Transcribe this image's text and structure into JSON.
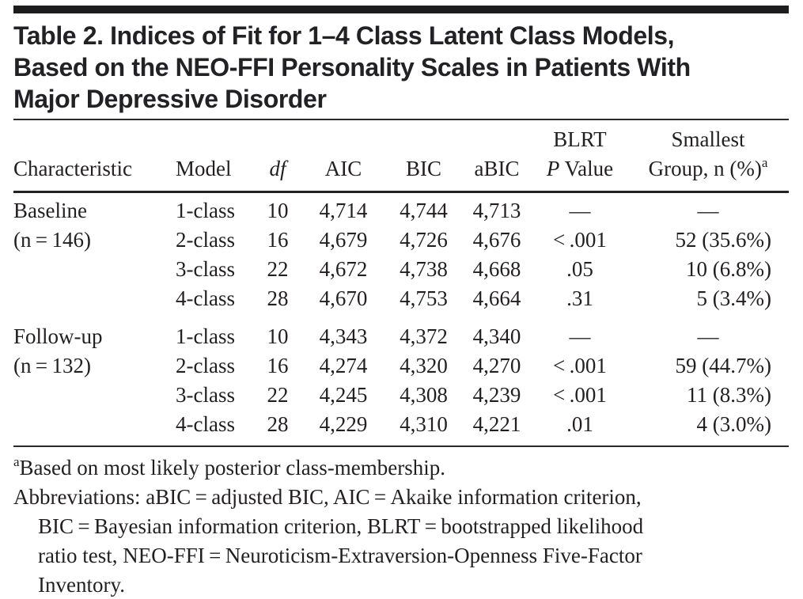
{
  "title": {
    "lines": [
      "Table 2. Indices of Fit for 1–4 Class Latent Class Models,",
      "Based on the NEO-FFI Personality Scales in Patients With",
      "Major Depressive Disorder"
    ]
  },
  "header": {
    "characteristic": "Characteristic",
    "model": "Model",
    "df": "df",
    "aic": "AIC",
    "bic": "BIC",
    "abic": "aBIC",
    "blrt_top": "BLRT",
    "p_italic": "P",
    "value_rest": " Value",
    "smallest_top": "Smallest",
    "group_label": "Group, n (%)",
    "footnote_marker": "a"
  },
  "rows": [
    {
      "characteristic": "Baseline",
      "model": "1-class",
      "df": "10",
      "aic": "4,714",
      "bic": "4,744",
      "abic": "4,713",
      "p": "—",
      "smallest": "—"
    },
    {
      "characteristic": "(n = 146)",
      "model": "2-class",
      "df": "16",
      "aic": "4,679",
      "bic": "4,726",
      "abic": "4,676",
      "p": "< .001",
      "smallest": "52 (35.6%)"
    },
    {
      "characteristic": "",
      "model": "3-class",
      "df": "22",
      "aic": "4,672",
      "bic": "4,738",
      "abic": "4,668",
      "p": ".05",
      "smallest": "10 (6.8%)"
    },
    {
      "characteristic": "",
      "model": "4-class",
      "df": "28",
      "aic": "4,670",
      "bic": "4,753",
      "abic": "4,664",
      "p": ".31",
      "smallest": "5 (3.4%)"
    },
    {
      "characteristic": "Follow-up",
      "model": "1-class",
      "df": "10",
      "aic": "4,343",
      "bic": "4,372",
      "abic": "4,340",
      "p": "—",
      "smallest": "—"
    },
    {
      "characteristic": "(n = 132)",
      "model": "2-class",
      "df": "16",
      "aic": "4,274",
      "bic": "4,320",
      "abic": "4,270",
      "p": "< .001",
      "smallest": "59 (44.7%)"
    },
    {
      "characteristic": "",
      "model": "3-class",
      "df": "22",
      "aic": "4,245",
      "bic": "4,308",
      "abic": "4,239",
      "p": "< .001",
      "smallest": "11 (8.3%)"
    },
    {
      "characteristic": "",
      "model": "4-class",
      "df": "28",
      "aic": "4,229",
      "bic": "4,310",
      "abic": "4,221",
      "p": ".01",
      "smallest": "4 (3.0%)"
    }
  ],
  "footnotes": {
    "marker": "a",
    "note": "Based on most likely posterior class-membership.",
    "abbrev_lines": [
      "Abbreviations: aBIC = adjusted BIC, AIC = Akaike information criterion,",
      "BIC = Bayesian information criterion, BLRT = bootstrapped likelihood",
      "ratio test, NEO-FFI = Neuroticism-Extraversion-Openness Five-Factor",
      "Inventory."
    ]
  },
  "colors": {
    "text": "#231f20",
    "rule": "#232325",
    "top_bar": "#1c1c1e",
    "background": "#ffffff"
  }
}
